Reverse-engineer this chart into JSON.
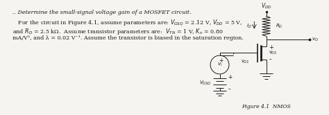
{
  "bg_color": "#f5f4f0",
  "text_color": "#1a1a1a",
  "circuit_color": "#1a1a1a",
  "figure_label": "Figure 4.1  NMOS",
  "title_line": ".. Determine the small-signal voltage gain of a MOSFET circuit.",
  "line2": "   For the circuit in Figure 4.1, assume parameters are: $V_{GSQ}$ = 2.12 V, $V_{DD}$ = 5 V,",
  "line3": "and $R_D$ = 2.5 kΩ.  Assume transistor parameters are:  $V_{TN}$ = 1 V, $K_n$ = 0.80",
  "line4": "mA/V², and λ = 0.02 V⁻¹. Assume the transistor is biased in the saturation region."
}
